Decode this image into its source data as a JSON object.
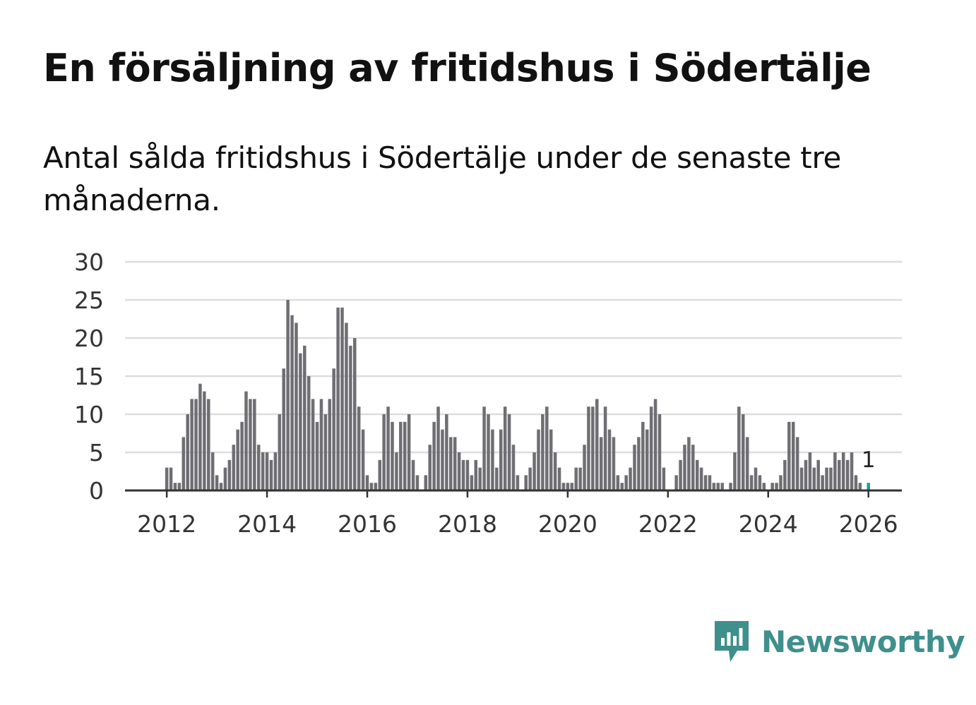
{
  "title": "En försäljning av fritidshus i Södertälje",
  "subtitle": "Antal sålda fritidshus i Södertälje under de senaste tre månaderna.",
  "brand": {
    "name": "Newsworthy",
    "color": "#3f8f8c"
  },
  "colors": {
    "bar": "#6f6e73",
    "highlight": "#1f9e98",
    "grid": "#dddddd",
    "axis": "#333333"
  },
  "chart_data": {
    "type": "bar",
    "title": "En försäljning av fritidshus i Södertälje",
    "subtitle": "Antal sålda fritidshus i Södertälje under de senaste tre månaderna.",
    "xlabel": "",
    "ylabel": "",
    "ylim": [
      0,
      30
    ],
    "yticks": [
      0,
      5,
      10,
      15,
      20,
      25,
      30
    ],
    "xticks": [
      "2012",
      "2014",
      "2016",
      "2018",
      "2020",
      "2022",
      "2024",
      "2026"
    ],
    "x_start": "2011-03",
    "x_end": "2026-09",
    "first_bar": "2012-01",
    "grid": true,
    "legend": "none",
    "highlight_last": true,
    "last_label": "1",
    "values": [
      3,
      3,
      1,
      1,
      7,
      10,
      12,
      12,
      14,
      13,
      12,
      5,
      2,
      1,
      3,
      4,
      6,
      8,
      9,
      13,
      12,
      12,
      6,
      5,
      5,
      4,
      5,
      10,
      16,
      25,
      23,
      22,
      18,
      19,
      15,
      12,
      9,
      12,
      10,
      12,
      16,
      24,
      24,
      22,
      19,
      20,
      11,
      8,
      2,
      1,
      1,
      4,
      10,
      11,
      9,
      5,
      9,
      9,
      10,
      4,
      2,
      0,
      2,
      6,
      9,
      11,
      8,
      10,
      7,
      7,
      5,
      4,
      4,
      2,
      4,
      3,
      11,
      10,
      8,
      3,
      8,
      11,
      10,
      6,
      2,
      0,
      2,
      3,
      5,
      8,
      10,
      11,
      8,
      5,
      3,
      1,
      1,
      1,
      3,
      3,
      6,
      11,
      11,
      12,
      7,
      11,
      8,
      7,
      2,
      1,
      2,
      3,
      6,
      7,
      9,
      8,
      11,
      12,
      10,
      3,
      0,
      0,
      2,
      4,
      6,
      7,
      6,
      4,
      3,
      2,
      2,
      1,
      1,
      1,
      0,
      1,
      5,
      11,
      10,
      7,
      2,
      3,
      2,
      1,
      0,
      1,
      1,
      2,
      4,
      9,
      9,
      7,
      3,
      4,
      5,
      3,
      4,
      2,
      3,
      3,
      5,
      4,
      5,
      4,
      5,
      2,
      1,
      0,
      1
    ]
  }
}
